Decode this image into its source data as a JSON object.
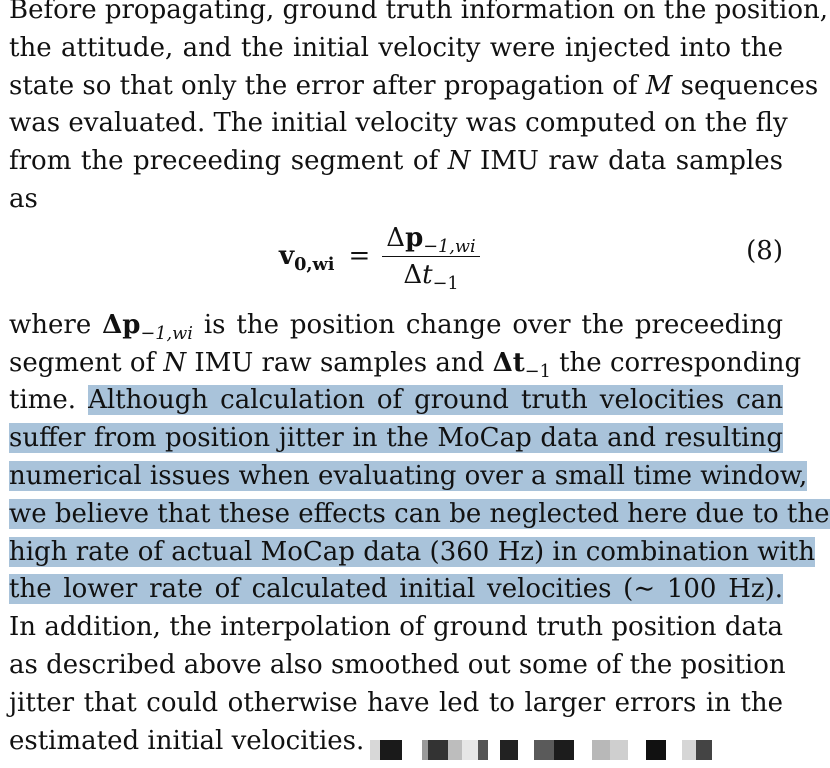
{
  "lines_before": [
    "Before propagating, ground truth information on the position,",
    "the attitude, and the initial velocity were injected into the",
    "state so that only the error after propagation of M sequences",
    "was evaluated. The initial velocity was computed on the fly",
    "from the preceeding segment of N IMU raw data samples",
    "as"
  ],
  "equation": {
    "lhs": "v",
    "lhs_sub": "0,wi",
    "equals": "=",
    "numerator_delta": "Δ",
    "numerator_var": "p",
    "numerator_sub": "−1,wi",
    "denominator_delta": "Δ",
    "denominator_var": "t",
    "denominator_sub": "−1",
    "number": "(8)"
  },
  "line_where_a": "where ",
  "line_where_delta": "Δ",
  "line_where_var": "p",
  "line_where_sub": "−1,wi",
  "line_where_b": " is the position change over the preceeding",
  "line_seg_a": "segment of ",
  "line_seg_n": "N",
  "line_seg_b": " IMU raw samples and ",
  "line_seg_delta": "Δ",
  "line_seg_var": "t",
  "line_seg_sub": "−1",
  "line_seg_c": " the corresponding",
  "line_time_plain": "time. ",
  "highlight_lines": [
    "Although calculation of ground truth velocities can",
    "suffer from position jitter in the MoCap data and resulting",
    "numerical issues when evaluating over a small time window,",
    "we believe that these effects can be neglected here due to the",
    "high rate of actual MoCap data (360 Hz) in combination with",
    "the lower rate of calculated initial velocities (∼ 100 Hz)."
  ],
  "lines_after": [
    "In addition, the interpolation of ground truth position data",
    "as described above also smoothed out some of the position",
    "jitter that could otherwise have led to larger errors in the"
  ],
  "last_line": "estimated initial velocities.",
  "colors": {
    "highlight": "#a9c3da",
    "text": "#111111"
  }
}
